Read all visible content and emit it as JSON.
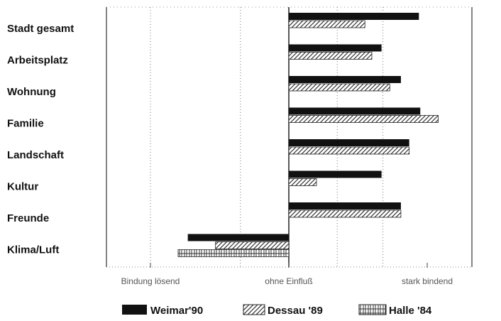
{
  "chart_data": {
    "type": "bar",
    "orientation": "horizontal",
    "categories": [
      "Stadt gesamt",
      "Arbeitsplatz",
      "Wohnung",
      "Familie",
      "Landschaft",
      "Kultur",
      "Freunde",
      "Klima/Luft"
    ],
    "series": [
      {
        "name": "Weimar'90",
        "values": [
          0.94,
          0.67,
          0.81,
          0.95,
          0.87,
          0.67,
          0.81,
          -0.73
        ],
        "fill": "solid"
      },
      {
        "name": "Dessau '89",
        "values": [
          0.55,
          0.6,
          0.73,
          1.08,
          0.87,
          0.2,
          0.81,
          -0.53
        ],
        "fill": "diagonal-hatch"
      },
      {
        "name": "Halle '84",
        "values": [
          null,
          null,
          null,
          null,
          null,
          null,
          null,
          -0.8
        ],
        "fill": "grid-hatch"
      }
    ],
    "xlim": [
      -1.5,
      1.3
    ],
    "x_tick_labels": [
      "Bindung lösend",
      "ohne Einfluß",
      "stark bindend"
    ],
    "x_tick_values": [
      -1,
      0,
      1
    ],
    "grid": "vertical dotted",
    "legend_position": "bottom-center",
    "colors": {
      "solid": "#111111",
      "hatch": "#333333",
      "background": "#ffffff"
    }
  }
}
